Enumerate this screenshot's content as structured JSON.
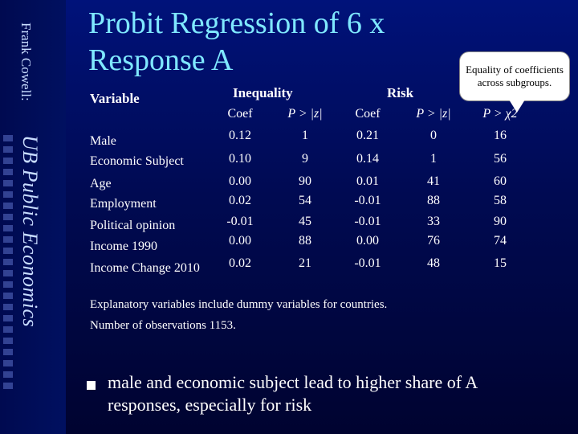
{
  "sidebar": {
    "author": "Frank Cowell:",
    "series": "UB Public Economics"
  },
  "title": "Probit Regression of 6 x Response A",
  "callout": "Equality of coefficients across subgroups.",
  "table": {
    "variable_header": "Variable",
    "group_inequality": "Inequality",
    "group_risk": "Risk",
    "col_coef": "Coef",
    "col_p": "P > |z|",
    "col_chi": "P > χ2",
    "rows": [
      {
        "label": "Male",
        "ineq_coef": "0.12",
        "ineq_p": "1",
        "risk_coef": "0.21",
        "risk_p": "0",
        "chi": "16"
      },
      {
        "label": "Economic Subject",
        "ineq_coef": "0.10",
        "ineq_p": "9",
        "risk_coef": "0.14",
        "risk_p": "1",
        "chi": "56"
      },
      {
        "label": "Age",
        "ineq_coef": "0.00",
        "ineq_p": "90",
        "risk_coef": "0.01",
        "risk_p": "41",
        "chi": "60"
      },
      {
        "label": "Employment",
        "ineq_coef": "0.02",
        "ineq_p": "54",
        "risk_coef": "-0.01",
        "risk_p": "88",
        "chi": "58"
      },
      {
        "label": "Political opinion",
        "ineq_coef": "-0.01",
        "ineq_p": "45",
        "risk_coef": "-0.01",
        "risk_p": "33",
        "chi": "90"
      },
      {
        "label": "Income 1990",
        "ineq_coef": "0.00",
        "ineq_p": "88",
        "risk_coef": "0.00",
        "risk_p": "76",
        "chi": "74"
      },
      {
        "label": "Income Change 2010",
        "ineq_coef": "0.02",
        "ineq_p": "21",
        "risk_coef": "-0.01",
        "risk_p": "48",
        "chi": "15"
      }
    ]
  },
  "notes": {
    "line1": "Explanatory variables include dummy variables for countries.",
    "line2": "Number of observations 1153."
  },
  "bullet": "male and economic subject lead to higher share of A responses, especially for risk",
  "colors": {
    "background": "#000a52",
    "title": "#7fe8ff",
    "text": "#ffffff",
    "callout_bg": "#ffffff"
  }
}
